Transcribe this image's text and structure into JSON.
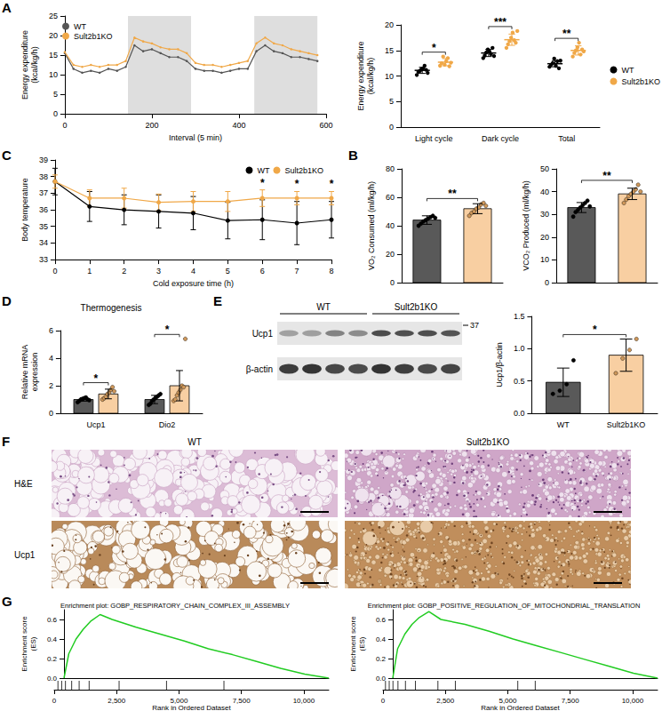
{
  "panel_letters": [
    "A",
    "B",
    "C",
    "D",
    "E",
    "F",
    "G"
  ],
  "chart_data": [
    {
      "type": "line",
      "x_label": "Interval (5 min)",
      "y_label": "Energy expenditure (kcal/kg/h)",
      "x": [
        0,
        20,
        40,
        60,
        80,
        100,
        120,
        140,
        160,
        180,
        200,
        220,
        240,
        260,
        280,
        300,
        320,
        340,
        360,
        380,
        400,
        420,
        440,
        460,
        480,
        500,
        520,
        540,
        560,
        580
      ],
      "series": [
        {
          "name": "WT",
          "color": "#555555",
          "values": [
            15.5,
            11.5,
            10.5,
            11,
            10.5,
            11.5,
            11,
            12,
            17.5,
            16,
            16.5,
            15.5,
            14.5,
            14.5,
            13.5,
            11.5,
            11,
            11,
            10.5,
            11,
            11.5,
            11.5,
            16,
            17.5,
            16,
            15.5,
            14.5,
            14.5,
            14,
            13.5
          ]
        },
        {
          "name": "Sult2b1KO",
          "color": "#f0a848",
          "values": [
            15.8,
            12.5,
            12,
            12.5,
            12,
            12.5,
            12.5,
            13.5,
            19.5,
            18.5,
            18,
            17,
            16.5,
            16.5,
            15.5,
            13,
            12.5,
            12.5,
            12,
            12.5,
            13,
            13.5,
            18,
            19.5,
            18,
            17.5,
            16.5,
            16,
            15.5,
            15
          ]
        }
      ],
      "xlim": [
        0,
        600
      ],
      "xticks": [
        0,
        200,
        400,
        600
      ],
      "ylim": [
        0,
        25
      ],
      "yticks": [
        0,
        5,
        10,
        15,
        20,
        25
      ],
      "marker": "circle",
      "legend": "upper left",
      "dark_periods": [
        [
          145,
          290
        ],
        [
          435,
          580
        ]
      ]
    },
    {
      "type": "scatter",
      "y_label": "Energy expenditure (kcal/kg/h)",
      "categories": [
        "Light cycle",
        "Dark cycle",
        "Total"
      ],
      "series": [
        {
          "name": "WT",
          "color": "#000000",
          "values": [
            11.1,
            14.5,
            12.4
          ],
          "errors": [
            0.6,
            0.7,
            0.6
          ],
          "points": [
            [
              10.2,
              10.8,
              11.0,
              11.3,
              11.5,
              12.0,
              11.2,
              10.6
            ],
            [
              13.5,
              14.0,
              14.6,
              15.2,
              14.8,
              14.3,
              15.5,
              13.9
            ],
            [
              11.8,
              12.2,
              12.5,
              13.4,
              12.0,
              12.9,
              11.5,
              13.0
            ]
          ]
        },
        {
          "name": "Sult2b1KO",
          "color": "#f0a848",
          "values": [
            12.7,
            17.1,
            15.0
          ],
          "errors": [
            0.7,
            1.1,
            0.9
          ],
          "points": [
            [
              12.0,
              12.5,
              13.8,
              12.2,
              12.9,
              13.5,
              11.9,
              12.6
            ],
            [
              15.5,
              16.2,
              16.8,
              17.5,
              18.5,
              17.0,
              16.5,
              18.8
            ],
            [
              13.8,
              14.5,
              15.0,
              15.6,
              16.5,
              14.2,
              15.2,
              14.8
            ]
          ]
        }
      ],
      "ylim": [
        0,
        20
      ],
      "yticks": [
        0,
        5,
        10,
        15,
        20
      ],
      "legend": "right",
      "annotations": [
        {
          "category": "Light cycle",
          "text": "*"
        },
        {
          "category": "Dark cycle",
          "text": "***"
        },
        {
          "category": "Total",
          "text": "**"
        }
      ]
    },
    {
      "type": "line",
      "x_label": "Cold exposure time (h)",
      "y_label": "Body temperature",
      "x": [
        0,
        1,
        2,
        3,
        4,
        5,
        6,
        7,
        8
      ],
      "series": [
        {
          "name": "WT",
          "color": "#000000",
          "marker": "circle",
          "values": [
            37.7,
            36.2,
            36.0,
            35.9,
            35.8,
            35.35,
            35.4,
            35.2,
            35.4
          ],
          "errors": [
            0.8,
            0.9,
            0.9,
            1.0,
            1.0,
            1.1,
            1.2,
            1.3,
            1.1
          ]
        },
        {
          "name": "Sult2b1KO",
          "color": "#f0a848",
          "marker": "circle",
          "values": [
            37.7,
            36.7,
            36.7,
            36.45,
            36.5,
            36.5,
            36.7,
            36.7,
            36.7
          ],
          "errors": [
            0.4,
            0.5,
            0.6,
            0.5,
            0.6,
            0.6,
            0.5,
            0.4,
            0.4
          ]
        }
      ],
      "xlim": [
        0,
        8
      ],
      "xticks": [
        0,
        1,
        2,
        3,
        4,
        5,
        6,
        7,
        8
      ],
      "ylim": [
        33,
        39
      ],
      "yticks": [
        33,
        34,
        35,
        36,
        37,
        38,
        39
      ],
      "legend": "upper right",
      "annotations": [
        {
          "x": 6,
          "text": "*"
        },
        {
          "x": 7,
          "text": "*"
        },
        {
          "x": 8,
          "text": "*"
        }
      ]
    },
    {
      "type": "bar",
      "y_label": "VO₂ Consumed (ml/kg/h)",
      "categories": [
        null,
        null
      ],
      "series": [
        {
          "colors": [
            "#595959",
            "#f8cfa2"
          ],
          "values": [
            44,
            52
          ],
          "errors": [
            3,
            3.5
          ],
          "points": [
            [
              40,
              41.5,
              43,
              44,
              45,
              46,
              47,
              45.5
            ],
            [
              47,
              49,
              50,
              52,
              53,
              55,
              56,
              54
            ]
          ]
        }
      ],
      "ylim": [
        0,
        80
      ],
      "yticks": [
        0,
        20,
        40,
        60,
        80
      ],
      "annotations": [
        {
          "text": "**"
        }
      ]
    },
    {
      "type": "bar",
      "y_label": "VCO₂ Produced (ml/kg/h)",
      "categories": [
        null,
        null
      ],
      "series": [
        {
          "colors": [
            "#595959",
            "#f8cfa2"
          ],
          "values": [
            33,
            39
          ],
          "errors": [
            2.2,
            2.5
          ],
          "points": [
            [
              29,
              31,
              32,
              33,
              34,
              35,
              36,
              33.5
            ],
            [
              35,
              36.5,
              38,
              39,
              40,
              41,
              43,
              40
            ]
          ]
        }
      ],
      "ylim": [
        0,
        50
      ],
      "yticks": [
        0,
        10,
        20,
        30,
        40,
        50
      ],
      "annotations": [
        {
          "text": "**"
        }
      ]
    },
    {
      "type": "bar",
      "title": "Thermogenesis",
      "y_label": "Relative mRNA expression",
      "categories": [
        "Ucp1",
        "Dio2"
      ],
      "series": [
        {
          "color": "#595959",
          "values": [
            1.0,
            1.0
          ],
          "errors": [
            0.12,
            0.3
          ],
          "points": [
            [
              0.8,
              0.9,
              1.0,
              1.05,
              1.1,
              1.15,
              1.0,
              0.95
            ],
            [
              0.6,
              0.7,
              0.9,
              1.0,
              1.1,
              1.2,
              1.3,
              1.4
            ]
          ]
        },
        {
          "color": "#f8cfa2",
          "values": [
            1.4,
            2.0
          ],
          "errors": [
            0.35,
            1.1
          ],
          "points": [
            [
              1.0,
              1.1,
              1.2,
              1.4,
              1.5,
              1.7,
              1.9,
              1.6
            ],
            [
              0.9,
              1.0,
              1.3,
              1.5,
              1.7,
              2.0,
              1.9,
              5.4
            ]
          ]
        }
      ],
      "ylim": [
        0,
        6
      ],
      "yticks": [
        0,
        2,
        4,
        6
      ],
      "annotations": [
        {
          "category": "Ucp1",
          "text": "*"
        },
        {
          "category": "Dio2",
          "text": "*"
        }
      ]
    },
    {
      "type": "bar",
      "y_label": "Ucp1/β-actin",
      "categories": [
        "WT",
        "Sult2b1KO"
      ],
      "series": [
        {
          "colors": [
            "#595959",
            "#f8cfa2"
          ],
          "values": [
            0.48,
            0.9
          ],
          "errors": [
            0.22,
            0.25
          ],
          "points": [
            [
              0.3,
              0.35,
              0.45,
              0.82
            ],
            [
              0.62,
              0.85,
              0.98,
              1.15
            ]
          ]
        }
      ],
      "ylim": [
        0,
        1.5
      ],
      "yticks": [
        {
          "value": 0,
          "label": "0.0"
        },
        0.5,
        {
          "value": 1,
          "label": "1.0"
        },
        1.5
      ],
      "annotations": [
        {
          "text": "*"
        }
      ]
    },
    {
      "type": "line",
      "title": "Enrichment plot: GOBP_RESPIRATORY_CHAIN_COMPLEX_III_ASSEMBLY",
      "x_label": "Rank in Ordered Dataset",
      "y_label": "Enrichment score (ES)",
      "x": [
        0,
        200,
        500,
        800,
        1100,
        1500,
        2000,
        3000,
        4000,
        5000,
        6000,
        7000,
        8000,
        9000,
        10000,
        11000
      ],
      "series": [
        {
          "color": "#22cc22",
          "values": [
            0,
            0.25,
            0.4,
            0.5,
            0.58,
            0.65,
            0.6,
            0.52,
            0.45,
            0.38,
            0.3,
            0.24,
            0.17,
            0.1,
            0.04,
            0
          ]
        }
      ],
      "hits": [
        150,
        300,
        450,
        700,
        1000,
        1400,
        2600,
        4500,
        6800
      ],
      "xlim": [
        0,
        11000
      ],
      "xticks": [
        0,
        {
          "value": 2500,
          "label": "2,500"
        },
        {
          "value": 5000,
          "label": "5,000"
        },
        {
          "value": 7500,
          "label": "7,500"
        },
        {
          "value": 10000,
          "label": "10,000"
        }
      ],
      "ylim": [
        0,
        0.7
      ],
      "yticks": [
        {
          "value": 0,
          "label": "0.0"
        },
        0.2,
        0.4,
        0.6
      ]
    },
    {
      "type": "line",
      "title": "Enrichment plot: GOBP_POSITIVE_REGULATION_OF_MITOCHONDRIAL_TRANSLATION",
      "x_label": "Rank in Ordered Dataset",
      "y_label": "Enrichment score (ES)",
      "x": [
        0,
        200,
        500,
        800,
        1100,
        1500,
        2000,
        3000,
        4000,
        5000,
        6000,
        7000,
        8000,
        9000,
        10000,
        11000
      ],
      "series": [
        {
          "color": "#22cc22",
          "values": [
            0,
            0.3,
            0.45,
            0.55,
            0.62,
            0.68,
            0.6,
            0.55,
            0.48,
            0.4,
            0.33,
            0.26,
            0.19,
            0.12,
            0.05,
            0
          ]
        }
      ],
      "hits": [
        100,
        250,
        400,
        600,
        900,
        1300,
        2200,
        2900,
        5400,
        6100
      ],
      "xlim": [
        0,
        11000
      ],
      "xticks": [
        0,
        {
          "value": 2500,
          "label": "2,500"
        },
        {
          "value": 5000,
          "label": "5,000"
        },
        {
          "value": 7500,
          "label": "7,500"
        },
        {
          "value": 10000,
          "label": "10,000"
        }
      ],
      "ylim": [
        0,
        0.7
      ],
      "yticks": [
        {
          "value": 0,
          "label": "0.0"
        },
        0.2,
        0.4,
        0.6
      ]
    }
  ],
  "blot": {
    "groups": [
      "WT",
      "Sult2b1KO"
    ],
    "lanes_per_group": 4,
    "bands": [
      "Ucp1",
      "β-actin"
    ],
    "marker": "37"
  },
  "histology": {
    "columns": [
      "WT",
      "Sult2b1KO"
    ],
    "rows": [
      "H&E",
      "Ucp1"
    ]
  }
}
